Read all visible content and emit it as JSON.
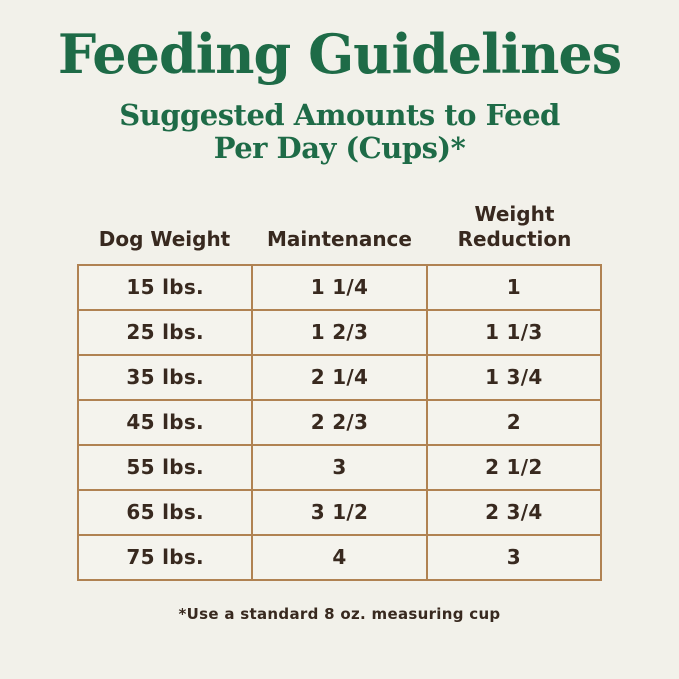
{
  "page": {
    "background_color": "#f2f1ea",
    "accent_green": "#1e6b47",
    "text_brown": "#38291f",
    "table_border_color": "#b08252",
    "title": "Feeding Guidelines",
    "subtitle_line1": "Suggested Amounts to Feed",
    "subtitle_line2": "Per Day (Cups)*",
    "footnote": "*Use a standard 8 oz. measuring cup"
  },
  "table": {
    "headers": {
      "dog_weight": "Dog Weight",
      "maintenance": "Maintenance",
      "weight_reduction": "Weight Reduction"
    },
    "rows": [
      {
        "weight": "15 lbs.",
        "maintenance": "1 1/4",
        "reduction": "1"
      },
      {
        "weight": "25 lbs.",
        "maintenance": "1 2/3",
        "reduction": "1 1/3"
      },
      {
        "weight": "35 lbs.",
        "maintenance": "2 1/4",
        "reduction": "1 3/4"
      },
      {
        "weight": "45 lbs.",
        "maintenance": "2 2/3",
        "reduction": "2"
      },
      {
        "weight": "55 lbs.",
        "maintenance": "3",
        "reduction": "2 1/2"
      },
      {
        "weight": "65 lbs.",
        "maintenance": "3 1/2",
        "reduction": "2 3/4"
      },
      {
        "weight": "75 lbs.",
        "maintenance": "4",
        "reduction": "3"
      }
    ]
  }
}
